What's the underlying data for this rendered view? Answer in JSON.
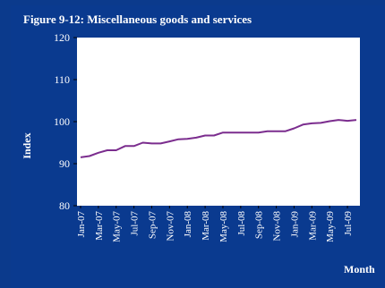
{
  "chart_data": {
    "type": "line",
    "title": "Figure 9-12: Miscellaneous goods and services",
    "xlabel": "Month",
    "ylabel": "Index",
    "ylim": [
      80,
      120
    ],
    "yticks": [
      80,
      90,
      100,
      110,
      120
    ],
    "grid": false,
    "legend": "none",
    "colors": {
      "background": "#0b3a8c",
      "plot_area": "#ffffff",
      "line": "#7b2d8e",
      "text": "#ffffff"
    },
    "x": [
      "Jan-07",
      "Feb-07",
      "Mar-07",
      "Apr-07",
      "May-07",
      "Jun-07",
      "Jul-07",
      "Aug-07",
      "Sep-07",
      "Oct-07",
      "Nov-07",
      "Dec-07",
      "Jan-08",
      "Feb-08",
      "Mar-08",
      "Apr-08",
      "May-08",
      "Jun-08",
      "Jul-08",
      "Aug-08",
      "Sep-08",
      "Oct-08",
      "Nov-08",
      "Dec-08",
      "Jan-09",
      "Feb-09",
      "Mar-09",
      "Apr-09",
      "May-09",
      "Jun-09",
      "Jul-09",
      "Aug-09"
    ],
    "x_tick_labels": [
      "Jan-07",
      "Mar-07",
      "May-07",
      "Jul-07",
      "Sep-07",
      "Nov-07",
      "Jan-08",
      "Mar-08",
      "May-08",
      "Jul-08",
      "Sep-08",
      "Nov-08",
      "Jan-09",
      "Mar-09",
      "May-09",
      "Jul-09"
    ],
    "series": [
      {
        "values": [
          91.5,
          91.8,
          92.6,
          93.2,
          93.2,
          94.2,
          94.2,
          95.0,
          94.8,
          94.8,
          95.3,
          95.8,
          95.9,
          96.2,
          96.7,
          96.7,
          97.4,
          97.4,
          97.4,
          97.4,
          97.4,
          97.7,
          97.7,
          97.7,
          98.4,
          99.3,
          99.6,
          99.7,
          100.1,
          100.4,
          100.2,
          100.4
        ]
      }
    ]
  }
}
